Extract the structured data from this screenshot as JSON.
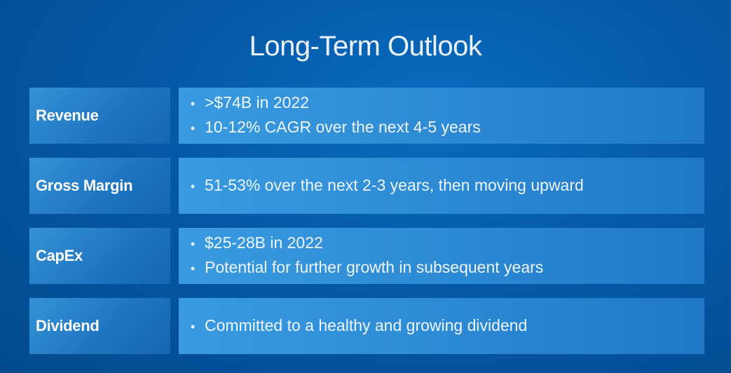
{
  "title": "Long-Term Outlook",
  "rows": [
    {
      "label": "Revenue",
      "bullets": [
        ">$74B in 2022",
        "10-12% CAGR over the next 4-5 years"
      ]
    },
    {
      "label": "Gross Margin",
      "bullets": [
        "51-53% over the next 2-3 years, then moving upward"
      ]
    },
    {
      "label": "CapEx",
      "bullets": [
        "$25-28B in 2022",
        "Potential for further growth in subsequent years"
      ]
    },
    {
      "label": "Dividend",
      "bullets": [
        "Committed to a healthy and growing dividend"
      ]
    }
  ]
}
